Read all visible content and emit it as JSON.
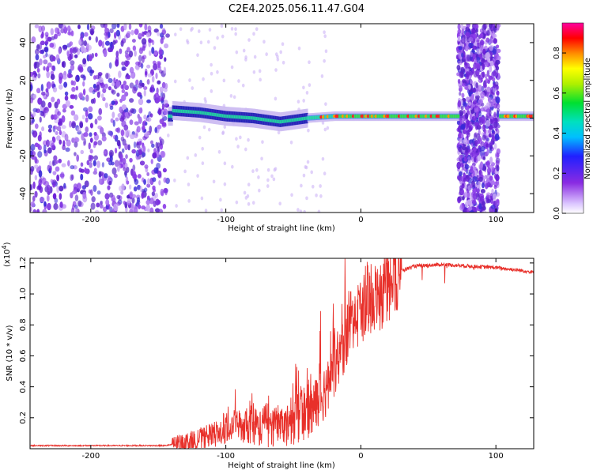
{
  "title": "C2E4.2025.056.11.47.G04",
  "chart_data": [
    {
      "type": "heatmap",
      "title": "C2E4.2025.056.11.47.G04",
      "xlabel": "Height of straight line (km)",
      "ylabel": "Frequency (Hz)",
      "xlim": [
        -245,
        128
      ],
      "ylim": [
        -50,
        50
      ],
      "xticks": [
        -200,
        -100,
        0,
        100
      ],
      "yticks": [
        -40,
        -20,
        0,
        20,
        40
      ],
      "colorbar": {
        "label": "Normalized spectral amplitude",
        "range": [
          0,
          0.95
        ],
        "ticks": [
          0.0,
          0.2,
          0.4,
          0.6,
          0.8
        ],
        "colormap": "rainbow (white→purple→blue→cyan→green→yellow→red→magenta)"
      },
      "features": [
        {
          "region": "noise band",
          "x": [
            -245,
            -143
          ],
          "note": "broad purple noise across full frequency range"
        },
        {
          "region": "signal trace",
          "x": [
            -143,
            128
          ],
          "centre_freq_hz": [
            4,
            3,
            1,
            0,
            -2,
            0,
            1,
            1,
            1,
            1,
            1
          ],
          "centre_x_km": [
            -140,
            -120,
            -100,
            -80,
            -60,
            -40,
            -20,
            0,
            40,
            80,
            120
          ]
        },
        {
          "region": "noise band",
          "x": [
            72,
            102
          ],
          "note": "broad purple noise across full frequency range"
        }
      ]
    },
    {
      "type": "line",
      "title": "",
      "xlabel": "Height of straight line (km)",
      "ylabel": "SNR (10 * v/v)",
      "yscale_label": "(x10",
      "yscale_exp": "4",
      "xlim": [
        -245,
        128
      ],
      "ylim": [
        0,
        1.23
      ],
      "xticks": [
        -200,
        -100,
        0,
        100
      ],
      "yticks": [
        0.2,
        0.4,
        0.6,
        0.8,
        1.0,
        1.2
      ],
      "color": "#e8302a",
      "series": [
        {
          "x": [
            -245,
            -200,
            -145,
            -130,
            -110,
            -100,
            -90,
            -80,
            -70,
            -60,
            -50,
            -40,
            -35,
            -30,
            -25,
            -20,
            -15,
            -10,
            -5,
            0,
            5,
            10,
            15,
            20,
            25,
            30,
            40,
            60,
            80,
            100,
            110,
            120,
            128
          ],
          "y": [
            0.02,
            0.02,
            0.02,
            0.04,
            0.08,
            0.12,
            0.14,
            0.15,
            0.14,
            0.16,
            0.18,
            0.22,
            0.26,
            0.33,
            0.4,
            0.52,
            0.62,
            0.75,
            0.82,
            0.9,
            0.92,
            0.95,
            1.0,
            1.05,
            1.1,
            1.15,
            1.18,
            1.19,
            1.18,
            1.17,
            1.16,
            1.15,
            1.14
          ],
          "spike_peaks": [
            {
              "x": -100,
              "y": 0.38
            },
            {
              "x": -93,
              "y": 0.33
            },
            {
              "x": -80,
              "y": 0.3
            },
            {
              "x": -70,
              "y": 0.35
            },
            {
              "x": -62,
              "y": 0.42
            },
            {
              "x": -48,
              "y": 0.47
            },
            {
              "x": -45,
              "y": 0.52
            },
            {
              "x": -38,
              "y": 0.57
            },
            {
              "x": -30,
              "y": 0.78
            },
            {
              "x": -22,
              "y": 0.92
            },
            {
              "x": -12,
              "y": 1.2
            },
            {
              "x": -8,
              "y": 1.02
            },
            {
              "x": 5,
              "y": 1.12
            }
          ]
        }
      ]
    }
  ]
}
